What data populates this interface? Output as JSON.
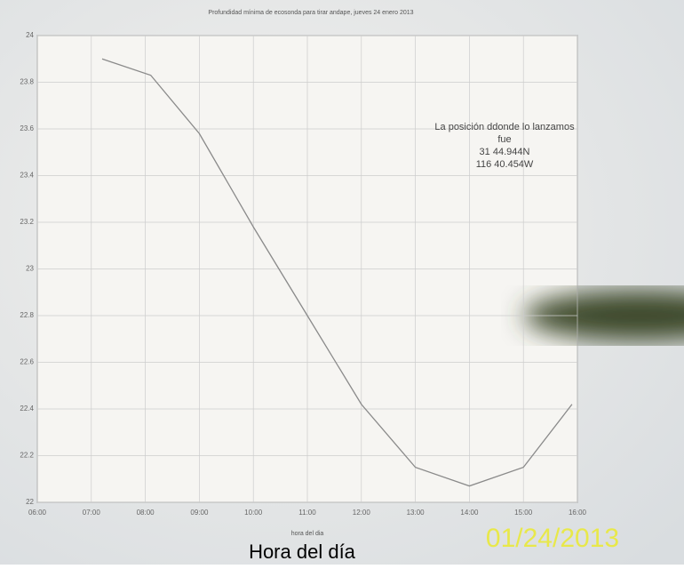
{
  "chart_data": {
    "type": "line",
    "title": "Profundidad mínima de ecosonda para tirar andape, jueves 24 enero 2013",
    "x_label": "hora del dia",
    "annotation": [
      "La posición ddonde lo lanzamos",
      "fue",
      "31 44.944N",
      "116 40.454W"
    ],
    "x": [
      7.2,
      8.1,
      9,
      10,
      11,
      12,
      13,
      14,
      15,
      15.9
    ],
    "series": [
      {
        "color": "#8a8a8a",
        "values": [
          23.9,
          23.83,
          23.58,
          23.18,
          22.8,
          22.42,
          22.15,
          22.07,
          22.15,
          22.42
        ]
      }
    ],
    "xlim": [
      6,
      16
    ],
    "xticks": [
      {
        "value": 6,
        "label": "06:00"
      },
      {
        "value": 7,
        "label": "07:00"
      },
      {
        "value": 8,
        "label": "08:00"
      },
      {
        "value": 9,
        "label": "09:00"
      },
      {
        "value": 10,
        "label": "10:00"
      },
      {
        "value": 11,
        "label": "11:00"
      },
      {
        "value": 12,
        "label": "12:00"
      },
      {
        "value": 13,
        "label": "13:00"
      },
      {
        "value": 14,
        "label": "14:00"
      },
      {
        "value": 15,
        "label": "15:00"
      },
      {
        "value": 16,
        "label": "16:00"
      }
    ],
    "ylim": [
      22,
      24
    ],
    "yticks": [
      22,
      22.2,
      22.4,
      22.6,
      22.8,
      23,
      23.2,
      23.4,
      23.6,
      23.8,
      24
    ],
    "grid": true
  },
  "photo_overlay": {
    "caption": "Hora del día",
    "timestamp": "01/24/2013"
  }
}
